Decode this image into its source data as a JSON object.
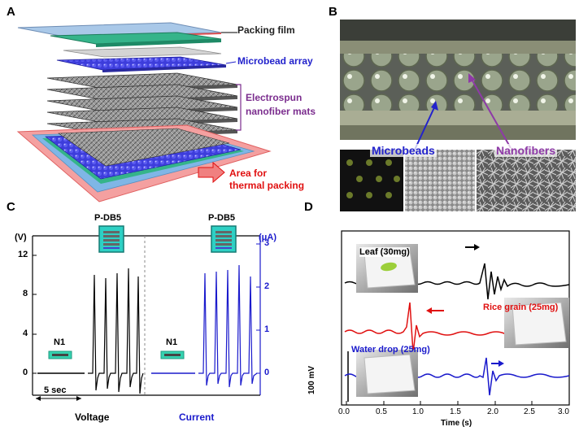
{
  "panels": {
    "a": {
      "letter": "A",
      "labels": {
        "packing_film": "Packing film",
        "microbead_array": "Microbead array",
        "nanofiber_line1": "Electrospun",
        "nanofiber_line2": "nanofiber mats",
        "thermal_line1": "Area for",
        "thermal_line2": "thermal packing"
      },
      "colors": {
        "packing": "#6f8fc4",
        "microbead": "#2222cc",
        "nanofiber": "#7b2d8e",
        "thermal": "#e01010"
      }
    },
    "b": {
      "letter": "B",
      "labels": {
        "microbeads": "Microbeads",
        "nanofibers": "Nanofibers"
      },
      "colors": {
        "microbeads": "#2222cc",
        "nanofibers": "#8e3aa7"
      }
    },
    "c": {
      "letter": "C",
      "device_label_left": "P-DB5",
      "device_label_right": "P-DB5",
      "ref_label_left": "N1",
      "ref_label_right": "N1",
      "left_axis_unit": "(V)",
      "right_axis_unit": "(μA)",
      "scale_bar_label": "5 sec",
      "voltage_label": "Voltage",
      "current_label": "Current",
      "left_ticks": [
        "0",
        "4",
        "8",
        "12"
      ],
      "right_ticks": [
        "0",
        "1",
        "2",
        "3"
      ],
      "colors": {
        "voltage": "#000000",
        "current": "#1a1acc"
      }
    },
    "d": {
      "letter": "D",
      "samples": {
        "leaf": "Leaf (30mg)",
        "rice": "Rice grain (25mg)",
        "water": "Water drop (25mg)"
      },
      "colors": {
        "leaf": "#000000",
        "rice": "#e01010",
        "water": "#1a1acc"
      },
      "y_scale_label": "100 mV",
      "x_label": "Time (s)",
      "x_ticks": [
        "0.0",
        "0.5",
        "1.0",
        "1.5",
        "2.0",
        "2.5",
        "3.0"
      ]
    }
  }
}
